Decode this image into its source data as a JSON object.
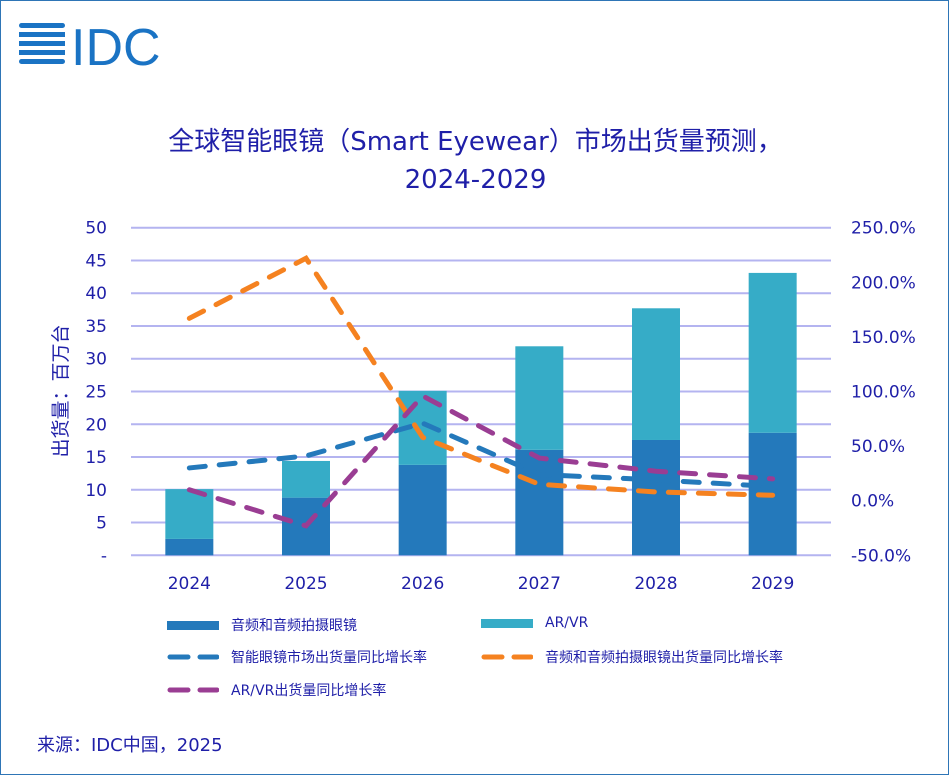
{
  "logo_text": "IDC",
  "title_line1": "全球智能眼镜（Smart Eyewear）市场出货量预测，",
  "title_line2": "2024-2029",
  "source": "来源：IDC中国，2025",
  "chart_data": {
    "type": "bar",
    "stacked": true,
    "categories": [
      "2024",
      "2025",
      "2026",
      "2027",
      "2028",
      "2029"
    ],
    "ylabel": "出货量：百万台",
    "ylim": [
      0,
      50
    ],
    "y_ticks": [
      "-",
      "5",
      "10",
      "15",
      "20",
      "25",
      "30",
      "35",
      "40",
      "45",
      "50"
    ],
    "y2lim": [
      -50,
      250
    ],
    "y2_ticks": [
      "-50.0%",
      "0.0%",
      "50.0%",
      "100.0%",
      "150.0%",
      "200.0%",
      "250.0%"
    ],
    "grid": true,
    "legend_position": "bottom",
    "series": [
      {
        "name": "音频和音频拍摄眼镜",
        "type": "bar",
        "color": "#2479bb",
        "values": [
          2.5,
          8.8,
          13.8,
          16.1,
          17.6,
          18.7
        ]
      },
      {
        "name": "AR/VR",
        "type": "bar",
        "color": "#36acc7",
        "values": [
          7.6,
          5.6,
          11.3,
          15.8,
          20.1,
          24.4
        ]
      },
      {
        "name": "智能眼镜市场出货量同比增长率",
        "type": "line",
        "axis": "right",
        "dash": true,
        "color": "#2479bb",
        "values": [
          30,
          41,
          71,
          24,
          19,
          13
        ]
      },
      {
        "name": "音频和音频拍摄眼镜出货量同比增长率",
        "type": "line",
        "axis": "right",
        "dash": true,
        "color": "#f58220",
        "values": [
          167,
          222,
          58,
          15,
          8,
          5
        ]
      },
      {
        "name": "AR/VR出货量同比增长率",
        "type": "line",
        "axis": "right",
        "dash": true,
        "color": "#9a3d93",
        "values": [
          10,
          -23,
          96,
          39,
          27,
          20
        ]
      }
    ]
  }
}
